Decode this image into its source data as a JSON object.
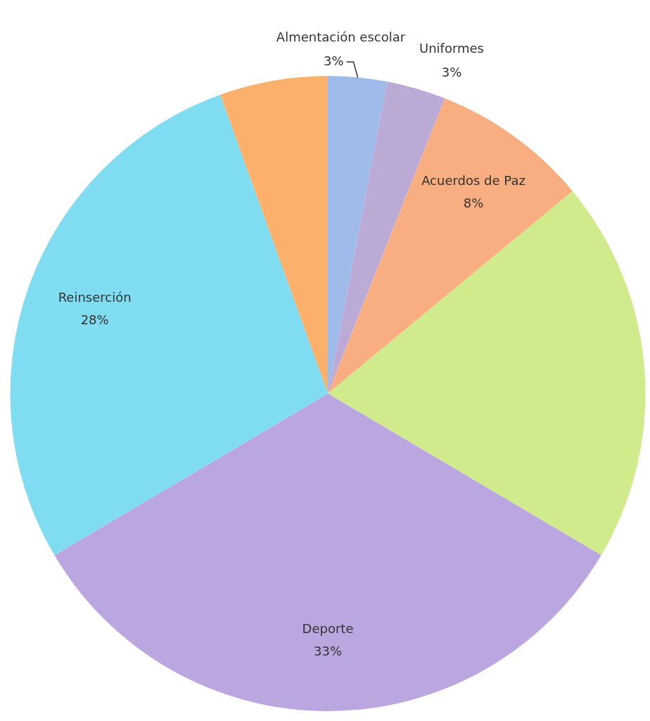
{
  "chart_data": {
    "type": "pie",
    "categories": [
      "Almentación escolar",
      "Uniformes",
      "Acuerdos de Paz",
      null,
      "Deporte",
      "Reinserción",
      null
    ],
    "values": [
      3,
      3,
      8,
      19.5,
      33,
      28,
      5.5
    ],
    "value_labels": [
      "3%",
      "3%",
      "8%",
      null,
      "33%",
      "28%",
      null
    ],
    "colors": [
      "#9fbbea",
      "#bcaad6",
      "#f8ae80",
      "#cfeb8c",
      "#bba6e0",
      "#80dcf1",
      "#fbb06c"
    ]
  }
}
